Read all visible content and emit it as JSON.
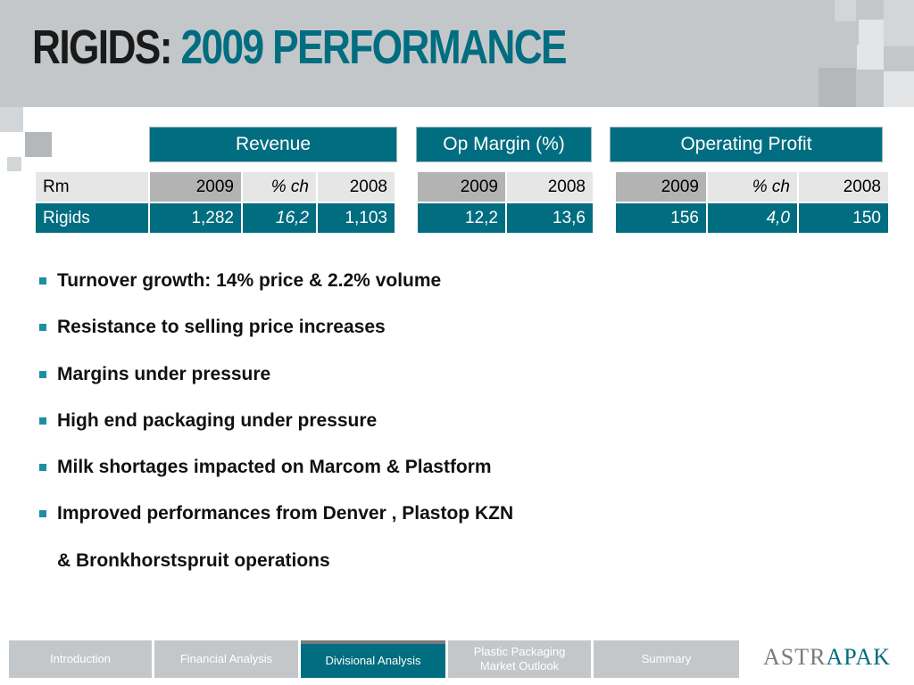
{
  "title": {
    "part1": "RIGIDS:",
    "part2": "2009 PERFORMANCE"
  },
  "tables": {
    "revenue": {
      "header": "Revenue",
      "row_label_header": "Rm",
      "columns": [
        "2009",
        "% ch",
        "2008"
      ],
      "row_label": "Rigids",
      "values": [
        "1,282",
        "16,2",
        "1,103"
      ]
    },
    "op_margin": {
      "header": "Op Margin (%)",
      "columns": [
        "2009",
        "2008"
      ],
      "values": [
        "12,2",
        "13,6"
      ]
    },
    "operating_profit": {
      "header": "Operating Profit",
      "columns": [
        "2009",
        "% ch",
        "2008"
      ],
      "values": [
        "156",
        "4,0",
        "150"
      ]
    }
  },
  "bullets": [
    "Turnover growth: 14% price & 2.2% volume",
    "Resistance to selling price increases",
    "Margins under pressure",
    "High end packaging under pressure",
    "Milk shortages impacted on Marcom & Plastform",
    "Improved performances from Denver , Plastop KZN",
    "& Bronkhorstspruit operations"
  ],
  "nav": {
    "tabs": [
      {
        "label": "Introduction",
        "active": false
      },
      {
        "label": "Financial Analysis",
        "active": false
      },
      {
        "label": "Divisional Analysis",
        "active": true
      },
      {
        "label": "Plastic Packaging Market Outlook",
        "active": false
      },
      {
        "label": "Summary",
        "active": false
      }
    ]
  },
  "logo": {
    "part1": "ASTR",
    "part2": "PAK",
    "mark": "A"
  },
  "colors": {
    "accent": "#006d80",
    "header_bg": "#c4c7c9",
    "bullet": "#1d8fa3"
  }
}
